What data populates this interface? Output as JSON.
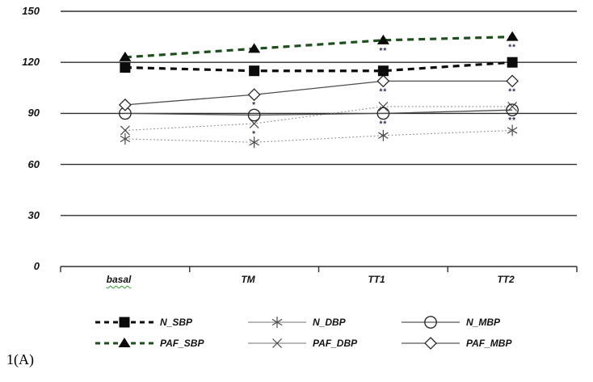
{
  "figure_label": "1(A)",
  "chart_data": {
    "type": "line",
    "title": "",
    "xlabel": "",
    "ylabel": "",
    "grid": true,
    "legend_position": "bottom",
    "ylim": [
      0,
      150
    ],
    "yticks": [
      150,
      120,
      90,
      60,
      30,
      0
    ],
    "ytick_labels": [
      "150",
      "120",
      "90",
      "60",
      "30",
      "0"
    ],
    "categories": [
      "basal",
      "TM",
      "TT1",
      "TT2"
    ],
    "series": [
      {
        "name": "N_SBP",
        "values": [
          117,
          115,
          115,
          120
        ],
        "line": "dashed",
        "marker": "filled-square",
        "color": "#0b0b0b",
        "marker_color": "#0b0b0b"
      },
      {
        "name": "PAF_SBP",
        "values": [
          123,
          128,
          133,
          135
        ],
        "line": "dashed",
        "marker": "filled-triangle",
        "color": "#1d4f1d",
        "marker_color": "#0b0b0b"
      },
      {
        "name": "N_DBP",
        "values": [
          75,
          73,
          77,
          80
        ],
        "line": "dotted",
        "marker": "asterisk",
        "color": "#8c8c8c",
        "marker_color": "#4a4a4a"
      },
      {
        "name": "PAF_DBP",
        "values": [
          80,
          84,
          94,
          94
        ],
        "line": "dotted",
        "marker": "x",
        "color": "#8c8c8c",
        "marker_color": "#4a4a4a"
      },
      {
        "name": "N_MBP",
        "values": [
          90,
          89,
          90,
          92
        ],
        "line": "solid",
        "marker": "open-circle",
        "color": "#4d4d4d",
        "marker_color": "#2a2a2a"
      },
      {
        "name": "PAF_MBP",
        "values": [
          95,
          101,
          109,
          109
        ],
        "line": "solid",
        "marker": "open-diamond",
        "color": "#4d4d4d",
        "marker_color": "#2a2a2a"
      }
    ],
    "annotations": [
      {
        "category": "TM",
        "series": "PAF_MBP",
        "text": "*"
      },
      {
        "category": "TM",
        "series": "PAF_DBP",
        "text": "*"
      },
      {
        "category": "TT1",
        "series": "PAF_SBP",
        "text": "**"
      },
      {
        "category": "TT1",
        "series": "PAF_MBP",
        "text": "**"
      },
      {
        "category": "TT1",
        "series": "N_MBP",
        "text": "**"
      },
      {
        "category": "TT2",
        "series": "PAF_SBP",
        "text": "**"
      },
      {
        "category": "TT2",
        "series": "PAF_MBP",
        "text": "**"
      },
      {
        "category": "TT2",
        "series": "N_MBP",
        "text": "**"
      }
    ]
  }
}
